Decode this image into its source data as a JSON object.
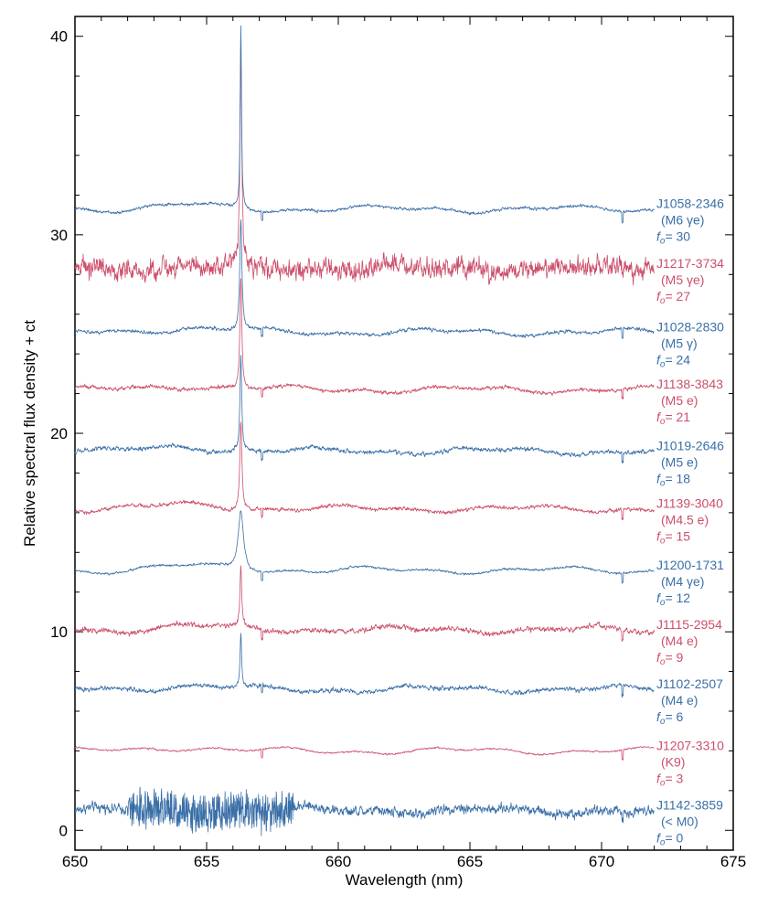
{
  "chart_data": {
    "type": "line",
    "xlabel": "Wavelength (nm)",
    "ylabel": "Relative spectral flux density + ct",
    "xlim": [
      650,
      675
    ],
    "ylim": [
      -1,
      41
    ],
    "xticks": [
      650,
      655,
      660,
      665,
      670,
      675
    ],
    "yticks": [
      0,
      10,
      20,
      30,
      40
    ],
    "xtick_labels": [
      "650",
      "655",
      "660",
      "665",
      "670",
      "675"
    ],
    "ytick_labels": [
      "0",
      "10",
      "20",
      "30",
      "40"
    ],
    "grid": false,
    "x_range": [
      650,
      672
    ],
    "halpha_center": 656.3,
    "colors": {
      "blue": "#3a6fa8",
      "red": "#cc4f6a"
    },
    "series": [
      {
        "name": "J1142-3859",
        "spt": "(< M0)",
        "offset_label": "f",
        "offset_sub": "o",
        "offset_text": "= 0",
        "offset": 0,
        "base": 1.0,
        "noise": 0.35,
        "noisy_range": [
          652,
          658.3
        ],
        "noisy_amp": 0.9,
        "peak": 0,
        "peak_width": 0.06,
        "color": "blue"
      },
      {
        "name": "J1207-3310",
        "spt": "(K9)",
        "offset_label": "f",
        "offset_sub": "o",
        "offset_text": "= 3",
        "offset": 3,
        "base": 4.0,
        "noise": 0.06,
        "noisy_range": [
          0,
          0
        ],
        "noisy_amp": 0,
        "peak": 0,
        "peak_width": 0.06,
        "color": "red"
      },
      {
        "name": "J1102-2507",
        "spt": "(M4 e)",
        "offset_label": "f",
        "offset_sub": "o",
        "offset_text": "= 6",
        "offset": 6,
        "base": 7.1,
        "noise": 0.15,
        "noisy_range": [
          0,
          0
        ],
        "noisy_amp": 0,
        "peak": 2.8,
        "peak_width": 0.035,
        "color": "blue"
      },
      {
        "name": "J1115-2954",
        "spt": "(M4 e)",
        "offset_label": "f",
        "offset_sub": "o",
        "offset_text": "= 9",
        "offset": 9,
        "base": 10.1,
        "noise": 0.18,
        "noisy_range": [
          0,
          0
        ],
        "noisy_amp": 0,
        "peak": 3.0,
        "peak_width": 0.04,
        "color": "red"
      },
      {
        "name": "J1200-1731",
        "spt": "(M4 γe)",
        "offset_label": "f",
        "offset_sub": "o",
        "offset_text": "= 12",
        "offset": 12,
        "base": 13.1,
        "noise": 0.08,
        "noisy_range": [
          0,
          0
        ],
        "noisy_amp": 0,
        "peak": 3.0,
        "peak_width": 0.12,
        "color": "blue"
      },
      {
        "name": "J1139-3040",
        "spt": "(M4.5 e)",
        "offset_label": "f",
        "offset_sub": "o",
        "offset_text": "= 15",
        "offset": 15,
        "base": 16.2,
        "noise": 0.13,
        "noisy_range": [
          0,
          0
        ],
        "noisy_amp": 0,
        "peak": 4.4,
        "peak_width": 0.05,
        "color": "red"
      },
      {
        "name": "J1019-2646",
        "spt": "(M5 e)",
        "offset_label": "f",
        "offset_sub": "o",
        "offset_text": "= 18",
        "offset": 18,
        "base": 19.1,
        "noise": 0.15,
        "noisy_range": [
          0,
          0
        ],
        "noisy_amp": 0,
        "peak": 4.8,
        "peak_width": 0.04,
        "color": "blue"
      },
      {
        "name": "J1138-3843",
        "spt": "(M5 e)",
        "offset_label": "f",
        "offset_sub": "o",
        "offset_text": "= 21",
        "offset": 21,
        "base": 22.2,
        "noise": 0.13,
        "noisy_range": [
          0,
          0
        ],
        "noisy_amp": 0,
        "peak": 5.5,
        "peak_width": 0.045,
        "color": "red"
      },
      {
        "name": "J1028-2830",
        "spt": "(M5 γ)",
        "offset_label": "f",
        "offset_sub": "o",
        "offset_text": "= 24",
        "offset": 24,
        "base": 25.1,
        "noise": 0.12,
        "noisy_range": [
          0,
          0
        ],
        "noisy_amp": 0,
        "peak": 5.5,
        "peak_width": 0.05,
        "color": "blue"
      },
      {
        "name": "J1217-3734",
        "spt": "(M5 γe)",
        "offset_label": "f",
        "offset_sub": "o",
        "offset_text": "= 27",
        "offset": 27,
        "base": 28.3,
        "noise": 0.7,
        "noisy_range": [
          0,
          0
        ],
        "noisy_amp": 0,
        "peak": 11.0,
        "peak_width": 0.04,
        "color": "red"
      },
      {
        "name": "J1058-2346",
        "spt": "(M6 γe)",
        "offset_label": "f",
        "offset_sub": "o",
        "offset_text": "= 30",
        "offset": 30,
        "base": 31.3,
        "noise": 0.1,
        "noisy_range": [
          0,
          0
        ],
        "noisy_amp": 0,
        "peak": 9.2,
        "peak_width": 0.03,
        "color": "blue"
      }
    ]
  }
}
